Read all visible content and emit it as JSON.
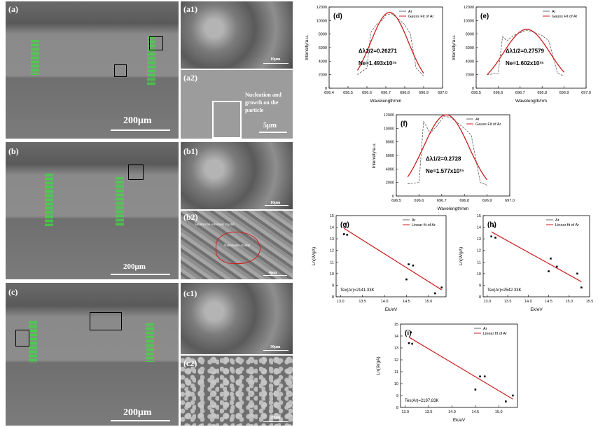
{
  "sem": {
    "a": {
      "label": "(a)",
      "scale": "200μm"
    },
    "a1": {
      "label": "(a1)",
      "scale": "10μm"
    },
    "a2": {
      "label": "(a2)",
      "scale": "5μm",
      "note": "Nucleation and growth on the particle"
    },
    "b": {
      "label": "(b)",
      "scale": "200μm"
    },
    "b1": {
      "label": "(b1)",
      "scale": "10μm"
    },
    "b2": {
      "label": "(b2)",
      "scale": "4μm",
      "note1": "Submicron columnar crystal",
      "note2": "Nanometer crystal"
    },
    "c": {
      "label": "(c)",
      "scale": "200μm"
    },
    "c1": {
      "label": "(c1)",
      "scale": "30μm"
    },
    "c2": {
      "label": "(c2)",
      "scale": "20μm"
    }
  },
  "colors": {
    "series_ar": "#444444",
    "fit": "#cc1e1e",
    "green": "#3cdc3c"
  },
  "chart_data": [
    {
      "id": "d",
      "type": "line",
      "panel": "(d)",
      "xlabel": "Wavelength/nm",
      "ylabel": "Intensity/a.u.",
      "xlim": [
        696.4,
        697.0
      ],
      "ylim": [
        0,
        12000
      ],
      "xticks": [
        "696.4",
        "696.5",
        "696.6",
        "696.7",
        "696.8",
        "696.9",
        "697.0"
      ],
      "yticks": [
        "0",
        "2000",
        "4000",
        "6000",
        "8000",
        "10000",
        "12000"
      ],
      "legend": [
        "Ar",
        "Gauss Fit of Ar"
      ],
      "annotation1": "Δλ1/2=0.26271",
      "annotation2": "Ne=1.493x10¹⁵",
      "series": [
        {
          "name": "Ar",
          "x": [
            696.55,
            696.6,
            696.62,
            696.65,
            696.68,
            696.7,
            696.73,
            696.76,
            696.8,
            696.83,
            696.86,
            696.9
          ],
          "y": [
            2000,
            3000,
            8200,
            9400,
            10000,
            10800,
            11000,
            10400,
            9400,
            8000,
            3000,
            1800
          ]
        }
      ],
      "fit": {
        "center": 696.72,
        "amp": 11200,
        "sigma": 0.1,
        "base": 0
      }
    },
    {
      "id": "e",
      "type": "line",
      "panel": "(e)",
      "xlabel": "Wavelength/nm",
      "ylabel": "Intensity/a.u.",
      "xlim": [
        696.5,
        697.0
      ],
      "ylim": [
        0,
        12000
      ],
      "xticks": [
        "696.5",
        "696.6",
        "696.7",
        "696.8",
        "696.9",
        "697.0"
      ],
      "yticks": [
        "0",
        "2000",
        "4000",
        "6000",
        "8000",
        "10000",
        "12000"
      ],
      "legend": [
        "Ar",
        "Gauss Fit of Ar"
      ],
      "annotation1": "Δλ1/2=0.27579",
      "annotation2": "Ne=1.602x10¹⁵",
      "series": [
        {
          "name": "Ar",
          "x": [
            696.55,
            696.6,
            696.62,
            696.64,
            696.67,
            696.7,
            696.73,
            696.76,
            696.8,
            696.83,
            696.87,
            696.9
          ],
          "y": [
            2000,
            2200,
            7600,
            7000,
            7800,
            8200,
            8600,
            8300,
            7800,
            7000,
            2200,
            1800
          ]
        }
      ],
      "fit": {
        "center": 696.73,
        "amp": 8700,
        "sigma": 0.105,
        "base": 0
      }
    },
    {
      "id": "f",
      "type": "line",
      "panel": "(f)",
      "xlabel": "Wavelength/nm",
      "ylabel": "Intensity/a.u.",
      "xlim": [
        696.5,
        697.0
      ],
      "ylim": [
        0,
        12000
      ],
      "xticks": [
        "696.5",
        "696.6",
        "696.7",
        "696.8",
        "696.9",
        "697.0"
      ],
      "yticks": [
        "0",
        "2000",
        "4000",
        "6000",
        "8000",
        "10000",
        "12000"
      ],
      "legend": [
        "Ar",
        "Gauss Fit of Ar"
      ],
      "annotation1": "Δλ1/2=0.2728",
      "annotation2": "Ne=1.577x10¹⁵",
      "series": [
        {
          "name": "Ar",
          "x": [
            696.55,
            696.6,
            696.62,
            696.65,
            696.68,
            696.71,
            696.74,
            696.77,
            696.8,
            696.83,
            696.87,
            696.9
          ],
          "y": [
            1800,
            2000,
            11000,
            9300,
            10400,
            11800,
            11600,
            10800,
            10000,
            9000,
            2000,
            1600
          ]
        }
      ],
      "fit": {
        "center": 696.72,
        "amp": 12000,
        "sigma": 0.1,
        "base": 0
      }
    },
    {
      "id": "g",
      "type": "scatter",
      "panel": "(g)",
      "xlabel": "Ek/eV",
      "ylabel": "Ln(Iλ/gA)",
      "xlim": [
        12.9,
        15.4
      ],
      "ylim": [
        8,
        15
      ],
      "xticks": [
        "13.0",
        "13.5",
        "14.0",
        "14.5",
        "15.0"
      ],
      "yticks": [
        "8",
        "9",
        "10",
        "11",
        "12",
        "13",
        "14",
        "15"
      ],
      "legend": [
        "Ar",
        "Linear fit of Ar"
      ],
      "annotation1": "Tex(Ar)=2141.33K",
      "x": [
        13.08,
        13.15,
        13.12,
        14.5,
        14.55,
        14.65,
        15.15,
        15.3
      ],
      "y": [
        13.4,
        13.35,
        14.3,
        9.5,
        10.8,
        10.7,
        8.3,
        8.8
      ],
      "fit_line": {
        "x": [
          13.08,
          15.3
        ],
        "y": [
          13.9,
          8.6
        ]
      }
    },
    {
      "id": "h",
      "type": "scatter",
      "panel": "(h)",
      "xlabel": "Ek/eV",
      "ylabel": "Ln(Iλ/gA)",
      "xlim": [
        12.9,
        15.5
      ],
      "ylim": [
        8,
        15
      ],
      "xticks": [
        "13.0",
        "13.5",
        "14.0",
        "14.5",
        "15.0",
        "15.5"
      ],
      "yticks": [
        "8",
        "9",
        "10",
        "11",
        "12",
        "13",
        "14",
        "15"
      ],
      "legend": [
        "Ar",
        "Linear fit of Ar"
      ],
      "annotation1": "Tex(Ar)=2542.33K",
      "x": [
        13.1,
        13.15,
        13.2,
        14.5,
        14.55,
        14.7,
        15.2,
        15.3
      ],
      "y": [
        13.2,
        14.1,
        13.1,
        10.2,
        11.3,
        10.6,
        10.0,
        8.8
      ],
      "fit_line": {
        "x": [
          13.1,
          15.3
        ],
        "y": [
          13.6,
          9.3
        ]
      }
    },
    {
      "id": "i",
      "type": "scatter",
      "panel": "(i)",
      "xlabel": "Ek/eV",
      "ylabel": "Ln(Iλ/gA)",
      "xlim": [
        12.9,
        15.4
      ],
      "ylim": [
        8,
        15
      ],
      "xticks": [
        "13.0",
        "13.5",
        "14.0",
        "14.5",
        "15.0",
        "15.5"
      ],
      "yticks": [
        "8",
        "9",
        "10",
        "11",
        "12",
        "13",
        "14",
        "15"
      ],
      "legend": [
        "Ar",
        "Linear fit of Ar"
      ],
      "annotation1": "Tex(Ar)=2197.83K",
      "x": [
        13.08,
        13.15,
        13.12,
        14.5,
        14.6,
        14.7,
        15.15,
        15.3
      ],
      "y": [
        13.4,
        13.35,
        14.3,
        9.5,
        10.6,
        10.6,
        8.5,
        9.0
      ],
      "fit_line": {
        "x": [
          13.08,
          15.3
        ],
        "y": [
          13.9,
          8.7
        ]
      }
    }
  ]
}
